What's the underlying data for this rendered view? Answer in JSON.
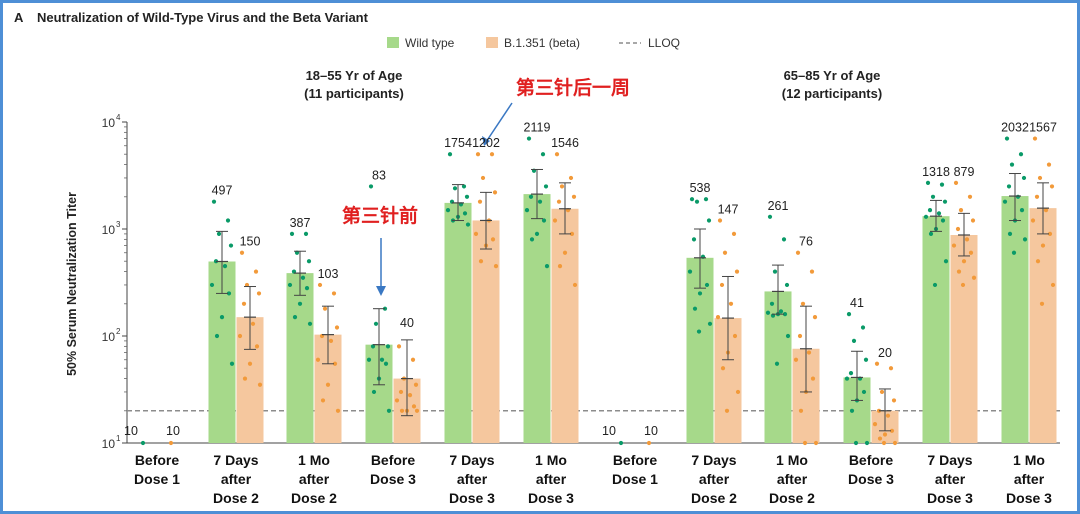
{
  "panel": {
    "letter": "A",
    "title": "Neutralization of Wild-Type Virus and the Beta Variant"
  },
  "legend": [
    {
      "label": "Wild type",
      "color": "#a6d98a",
      "kind": "box"
    },
    {
      "label": "B.1.351 (beta)",
      "color": "#f5c79e",
      "kind": "box"
    },
    {
      "label": "LLOQ",
      "color": "#8c8c8c",
      "kind": "dash"
    }
  ],
  "annotations": [
    {
      "text": "第三针后一周",
      "color": "#e02020",
      "target": "group1-dose3-7d-beta"
    },
    {
      "text": "第三针前",
      "color": "#e02020",
      "target": "group1-before-dose3-wt"
    }
  ],
  "colors": {
    "wild_type_bar": "#a6d98a",
    "wild_type_dot": "#0a9a68",
    "beta_bar": "#f5c79e",
    "beta_dot": "#f29a3a",
    "arrow": "#3a78c3",
    "border": "#4e8fd6"
  },
  "chart_data": {
    "type": "bar",
    "yscale": "log",
    "ylabel": "50% Serum Neutralization Titer",
    "ylim": [
      10,
      10000
    ],
    "y_ticks": [
      {
        "value": 10,
        "base": "10",
        "exp": "1"
      },
      {
        "value": 100,
        "base": "10",
        "exp": "2"
      },
      {
        "value": 1000,
        "base": "10",
        "exp": "3"
      },
      {
        "value": 10000,
        "base": "10",
        "exp": "4"
      }
    ],
    "lloq": 20,
    "series": [
      {
        "name": "Wild type"
      },
      {
        "name": "B.1.351 (beta)"
      }
    ],
    "groups": [
      {
        "title_line1": "18–55 Yr of Age",
        "title_line2": "(11 participants)",
        "categories": [
          {
            "label_lines": [
              "Before",
              "Dose 1"
            ],
            "wt": 10,
            "beta": 10,
            "wt_label": "10",
            "beta_label": "10",
            "wt_ci": null,
            "beta_ci": null,
            "wt_points": [
              10
            ],
            "beta_points": [
              10
            ]
          },
          {
            "label_lines": [
              "7 Days",
              "after",
              "Dose 2"
            ],
            "wt": 497,
            "beta": 150,
            "wt_label": "497",
            "beta_label": "150",
            "wt_ci": [
              250,
              950
            ],
            "beta_ci": [
              75,
              290
            ],
            "wt_points": [
              1800,
              1200,
              900,
              700,
              500,
              450,
              300,
              250,
              150,
              100,
              55
            ],
            "beta_points": [
              600,
              400,
              300,
              250,
              200,
              130,
              100,
              80,
              55,
              40,
              35
            ]
          },
          {
            "label_lines": [
              "1 Mo",
              "after",
              "Dose 2"
            ],
            "wt": 387,
            "beta": 103,
            "wt_label": "387",
            "beta_label": "103",
            "wt_ci": [
              240,
              620
            ],
            "beta_ci": [
              55,
              190
            ],
            "wt_points": [
              900,
              900,
              600,
              500,
              400,
              350,
              300,
              280,
              200,
              150,
              130
            ],
            "beta_points": [
              300,
              250,
              180,
              120,
              100,
              90,
              60,
              55,
              35,
              25,
              20
            ]
          },
          {
            "label_lines": [
              "Before",
              "Dose 3"
            ],
            "wt": 83,
            "beta": 40,
            "wt_label": "83",
            "beta_label": "40",
            "wt_ci": [
              35,
              180
            ],
            "beta_ci": [
              18,
              92
            ],
            "wt_points": [
              2500,
              180,
              130,
              80,
              80,
              60,
              60,
              55,
              40,
              30,
              20
            ],
            "beta_points": [
              80,
              60,
              40,
              35,
              30,
              28,
              25,
              22,
              20,
              20,
              20
            ]
          },
          {
            "label_lines": [
              "7 Days",
              "after",
              "Dose 3"
            ],
            "wt": 1754,
            "beta": 1202,
            "wt_label": "1754",
            "beta_label": "1202",
            "wt_ci": [
              1200,
              2600
            ],
            "beta_ci": [
              650,
              2200
            ],
            "wt_points": [
              5000,
              2500,
              2400,
              2000,
              1800,
              1700,
              1500,
              1400,
              1300,
              1200,
              1100
            ],
            "beta_points": [
              5000,
              5000,
              3000,
              2200,
              1800,
              1200,
              900,
              800,
              700,
              500,
              450
            ]
          },
          {
            "label_lines": [
              "1 Mo",
              "after",
              "Dose 3"
            ],
            "wt": 2119,
            "beta": 1546,
            "wt_label": "2119",
            "beta_label": "1546",
            "wt_ci": [
              1250,
              3600
            ],
            "beta_ci": [
              900,
              2700
            ],
            "wt_points": [
              7000,
              5000,
              3500,
              2500,
              2000,
              1800,
              1500,
              1200,
              900,
              800,
              450
            ],
            "beta_points": [
              5000,
              3000,
              2500,
              2000,
              1800,
              1500,
              1200,
              900,
              600,
              450,
              300
            ]
          }
        ]
      },
      {
        "title_line1": "65–85 Yr of Age",
        "title_line2": "(12 participants)",
        "categories": [
          {
            "label_lines": [
              "Before",
              "Dose 1"
            ],
            "wt": 10,
            "beta": 10,
            "wt_label": "10",
            "beta_label": "10",
            "wt_ci": null,
            "beta_ci": null,
            "wt_points": [
              10
            ],
            "beta_points": [
              10
            ]
          },
          {
            "label_lines": [
              "7 Days",
              "after",
              "Dose 2"
            ],
            "wt": 538,
            "beta": 147,
            "wt_label": "538",
            "beta_label": "147",
            "wt_ci": [
              280,
              1000
            ],
            "beta_ci": [
              60,
              360
            ],
            "wt_points": [
              1900,
              1900,
              1800,
              1200,
              800,
              550,
              400,
              300,
              250,
              180,
              130,
              110
            ],
            "beta_points": [
              1200,
              900,
              600,
              400,
              300,
              200,
              150,
              100,
              70,
              50,
              30,
              20
            ]
          },
          {
            "label_lines": [
              "1 Mo",
              "after",
              "Dose 2"
            ],
            "wt": 261,
            "beta": 76,
            "wt_label": "261",
            "beta_label": "76",
            "wt_ci": [
              160,
              460
            ],
            "beta_ci": [
              30,
              190
            ],
            "wt_points": [
              1300,
              800,
              400,
              300,
              200,
              170,
              165,
              160,
              160,
              155,
              100,
              55
            ],
            "beta_points": [
              600,
              400,
              200,
              150,
              100,
              70,
              60,
              40,
              30,
              20,
              10,
              10
            ]
          },
          {
            "label_lines": [
              "Before",
              "Dose 3"
            ],
            "wt": 41,
            "beta": 20,
            "wt_label": "41",
            "beta_label": "20",
            "wt_ci": [
              25,
              72
            ],
            "beta_ci": [
              13,
              32
            ],
            "wt_points": [
              160,
              120,
              90,
              60,
              45,
              40,
              40,
              30,
              25,
              20,
              10,
              10
            ],
            "beta_points": [
              55,
              50,
              30,
              25,
              20,
              18,
              15,
              13,
              12,
              11,
              10,
              10
            ]
          },
          {
            "label_lines": [
              "7 Days",
              "after",
              "Dose 3"
            ],
            "wt": 1318,
            "beta": 879,
            "wt_label": "1318",
            "beta_label": "879",
            "wt_ci": [
              950,
              1850
            ],
            "beta_ci": [
              560,
              1400
            ],
            "wt_points": [
              2700,
              2600,
              2000,
              1800,
              1500,
              1400,
              1300,
              1200,
              1000,
              900,
              500,
              300
            ],
            "beta_points": [
              2700,
              2000,
              1500,
              1200,
              1000,
              800,
              700,
              600,
              500,
              400,
              350,
              300
            ]
          },
          {
            "label_lines": [
              "1 Mo",
              "after",
              "Dose 3"
            ],
            "wt": 2032,
            "beta": 1567,
            "wt_label": "2032",
            "beta_label": "1567",
            "wt_ci": [
              1200,
              3300
            ],
            "beta_ci": [
              900,
              2700
            ],
            "wt_points": [
              7000,
              5000,
              4000,
              3000,
              2500,
              2000,
              1800,
              1500,
              1200,
              900,
              800,
              600
            ],
            "beta_points": [
              7000,
              4000,
              3000,
              2500,
              2000,
              1500,
              1200,
              900,
              700,
              500,
              300,
              200
            ]
          }
        ]
      }
    ]
  }
}
